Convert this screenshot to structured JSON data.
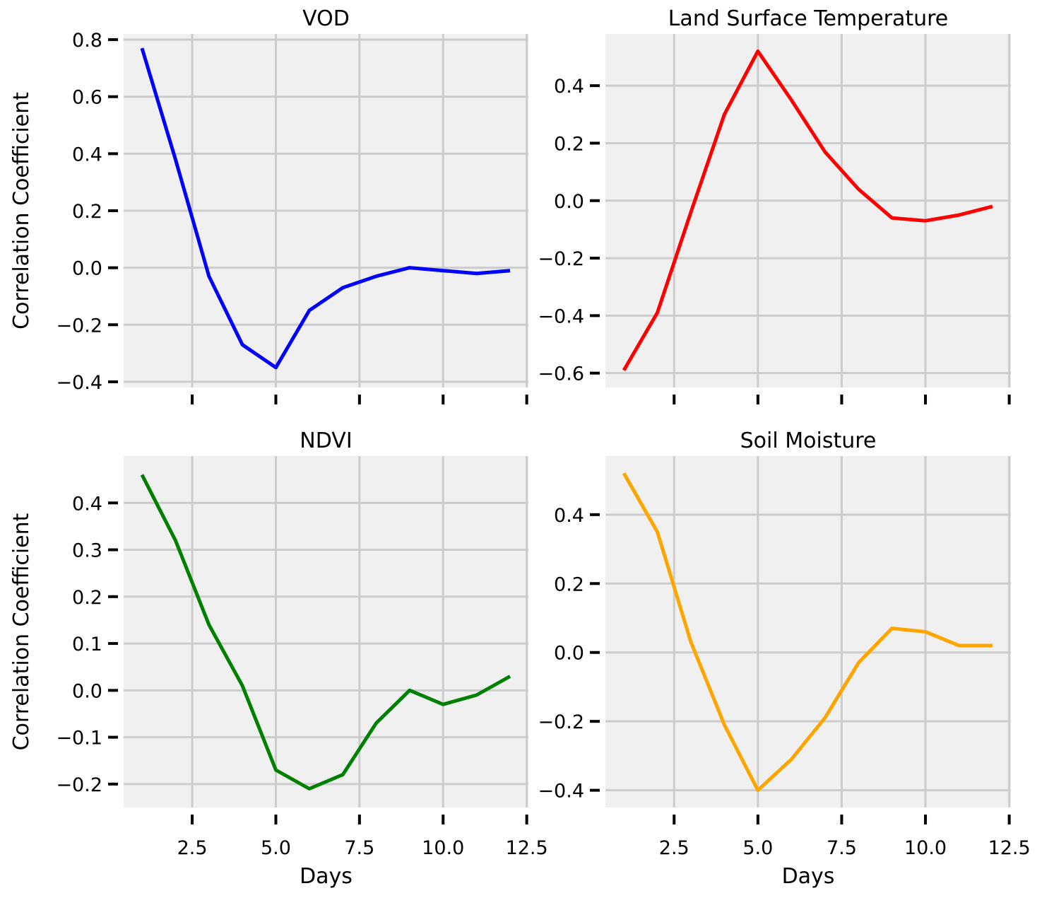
{
  "figure": {
    "background": "#ffffff",
    "plot_background": "#f0f0f0",
    "grid_color": "#cccccc"
  },
  "chart_data": [
    {
      "type": "line",
      "title": "VOD",
      "xlabel": "",
      "ylabel": "Correlation Coefficient",
      "xlim": [
        0.45,
        12.55
      ],
      "ylim": [
        -0.42,
        0.82
      ],
      "xticks": [
        2.5,
        5.0,
        7.5,
        10.0,
        12.5
      ],
      "xtick_labels_visible": false,
      "yticks": [
        -0.4,
        -0.2,
        0.0,
        0.2,
        0.4,
        0.6,
        0.8
      ],
      "ytick_labels": [
        "−0.4",
        "−0.2",
        "0.0",
        "0.2",
        "0.4",
        "0.6",
        "0.8"
      ],
      "grid": true,
      "series": [
        {
          "color": "#0000ff",
          "x": [
            1,
            2,
            3,
            4,
            5,
            6,
            7,
            8,
            9,
            10,
            11,
            12
          ],
          "y": [
            0.77,
            0.38,
            -0.03,
            -0.27,
            -0.35,
            -0.15,
            -0.07,
            -0.03,
            0.0,
            -0.01,
            -0.02,
            -0.01
          ]
        }
      ]
    },
    {
      "type": "line",
      "title": "Land Surface Temperature",
      "xlabel": "",
      "ylabel": "",
      "xlim": [
        0.45,
        12.55
      ],
      "ylim": [
        -0.65,
        0.58
      ],
      "xticks": [
        2.5,
        5.0,
        7.5,
        10.0,
        12.5
      ],
      "xtick_labels_visible": false,
      "yticks": [
        -0.6,
        -0.4,
        -0.2,
        0.0,
        0.2,
        0.4
      ],
      "ytick_labels": [
        "−0.6",
        "−0.4",
        "−0.2",
        "0.0",
        "0.2",
        "0.4"
      ],
      "grid": true,
      "series": [
        {
          "color": "#ff0000",
          "x": [
            1,
            2,
            3,
            4,
            5,
            6,
            7,
            8,
            9,
            10,
            11,
            12
          ],
          "y": [
            -0.59,
            -0.39,
            -0.04,
            0.3,
            0.52,
            0.35,
            0.17,
            0.04,
            -0.06,
            -0.07,
            -0.05,
            -0.02
          ]
        }
      ]
    },
    {
      "type": "line",
      "title": "NDVI",
      "xlabel": "Days",
      "ylabel": "Correlation Coefficient",
      "xlim": [
        0.45,
        12.55
      ],
      "ylim": [
        -0.25,
        0.5
      ],
      "xticks": [
        2.5,
        5.0,
        7.5,
        10.0,
        12.5
      ],
      "xtick_labels": [
        "2.5",
        "5.0",
        "7.5",
        "10.0",
        "12.5"
      ],
      "xtick_labels_visible": true,
      "yticks": [
        -0.2,
        -0.1,
        0.0,
        0.1,
        0.2,
        0.3,
        0.4
      ],
      "ytick_labels": [
        "−0.2",
        "−0.1",
        "0.0",
        "0.1",
        "0.2",
        "0.3",
        "0.4"
      ],
      "grid": true,
      "series": [
        {
          "color": "#008000",
          "x": [
            1,
            2,
            3,
            4,
            5,
            6,
            7,
            8,
            9,
            10,
            11,
            12
          ],
          "y": [
            0.46,
            0.32,
            0.14,
            0.01,
            -0.17,
            -0.21,
            -0.18,
            -0.07,
            0.0,
            -0.03,
            -0.01,
            0.03
          ]
        }
      ]
    },
    {
      "type": "line",
      "title": "Soil Moisture",
      "xlabel": "Days",
      "ylabel": "",
      "xlim": [
        0.45,
        12.55
      ],
      "ylim": [
        -0.45,
        0.57
      ],
      "xticks": [
        2.5,
        5.0,
        7.5,
        10.0,
        12.5
      ],
      "xtick_labels": [
        "2.5",
        "5.0",
        "7.5",
        "10.0",
        "12.5"
      ],
      "xtick_labels_visible": true,
      "yticks": [
        -0.4,
        -0.2,
        0.0,
        0.2,
        0.4
      ],
      "ytick_labels": [
        "−0.4",
        "−0.2",
        "0.0",
        "0.2",
        "0.4"
      ],
      "grid": true,
      "series": [
        {
          "color": "#ffa500",
          "x": [
            1,
            2,
            3,
            4,
            5,
            6,
            7,
            8,
            9,
            10,
            11,
            12
          ],
          "y": [
            0.52,
            0.35,
            0.03,
            -0.21,
            -0.4,
            -0.31,
            -0.19,
            -0.03,
            0.07,
            0.06,
            0.02,
            0.02
          ]
        }
      ]
    }
  ]
}
